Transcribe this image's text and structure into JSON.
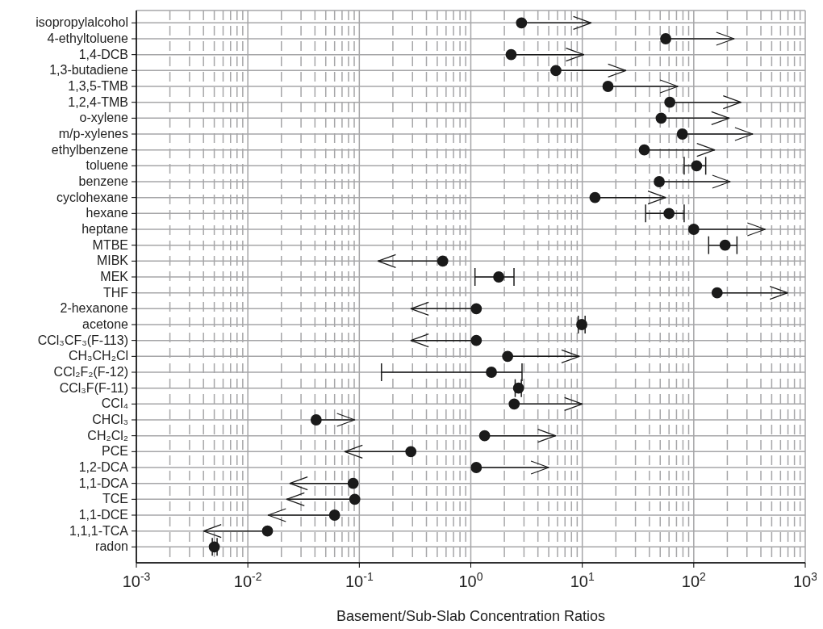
{
  "chart_data": {
    "type": "scatter",
    "orientation": "horizontal",
    "xlabel": "Basement/Sub-Slab Concentration Ratios",
    "categories": [
      "isopropylalcohol",
      "4-ethyltoluene",
      "1,4-DCB",
      "1,3-butadiene",
      "1,3,5-TMB",
      "1,2,4-TMB",
      "o-xylene",
      "m/p-xylenes",
      "ethylbenzene",
      "toluene",
      "benzene",
      "cyclohexane",
      "hexane",
      "heptane",
      "MTBE",
      "MIBK",
      "MEK",
      "THF",
      "2-hexanone",
      "acetone",
      "CCl₃CF₃(F-113)",
      "CH₃CH₂Cl",
      "CCl₂F₂(F-12)",
      "CCl₃F(F-11)",
      "CCl₄",
      "CHCl₃",
      "CH₂Cl₂",
      "PCE",
      "1,2-DCA",
      "1,1-DCA",
      "TCE",
      "1,1-DCE",
      "1,1,1-TCA",
      "radon"
    ],
    "values": [
      2.85,
      56,
      2.3,
      5.8,
      17,
      61,
      51,
      79,
      36,
      106,
      49,
      13,
      60,
      100,
      191,
      0.56,
      1.78,
      162,
      1.12,
      9.9,
      1.12,
      2.14,
      1.53,
      2.68,
      2.45,
      0.041,
      1.33,
      0.29,
      1.12,
      0.088,
      0.091,
      0.06,
      0.015,
      0.005
    ],
    "errors": [
      [
        2.85,
        12
      ],
      [
        56,
        230
      ],
      [
        2.3,
        10.3
      ],
      [
        5.8,
        24.6
      ],
      [
        17,
        72
      ],
      [
        61,
        265
      ],
      [
        51,
        208
      ],
      [
        79,
        338
      ],
      [
        36,
        154
      ],
      [
        82,
        128
      ],
      [
        49,
        212
      ],
      [
        13,
        56
      ],
      [
        37,
        82
      ],
      [
        100,
        437
      ],
      [
        136,
        244
      ],
      [
        0.147,
        0.56
      ],
      [
        1.09,
        2.44
      ],
      [
        162,
        695
      ],
      [
        0.29,
        1.12
      ],
      [
        9.2,
        10.6
      ],
      [
        0.29,
        1.12
      ],
      [
        2.14,
        9.4
      ],
      [
        0.158,
        2.88
      ],
      [
        2.5,
        2.84
      ],
      [
        2.45,
        10
      ],
      [
        0.041,
        0.091
      ],
      [
        1.33,
        5.76
      ],
      [
        0.074,
        0.29
      ],
      [
        1.12,
        5
      ],
      [
        0.0238,
        0.088
      ],
      [
        0.0223,
        0.091
      ],
      [
        0.0152,
        0.06
      ],
      [
        0.004,
        0.015
      ],
      [
        0.0048,
        0.0053
      ]
    ],
    "color": "#1a1a1a",
    "marker": "circle",
    "log": "x",
    "grid": true,
    "xlim": [
      0.001,
      1000
    ],
    "xticks": [
      {
        "value": 0.001,
        "label": "10$^{-3}$"
      },
      {
        "value": 0.01,
        "label": "10$^{-2}$"
      },
      {
        "value": 0.1,
        "label": "10$^{-1}$"
      },
      {
        "value": 1,
        "label": "10$^{0}$"
      },
      {
        "value": 10,
        "label": "10$^{1}$"
      },
      {
        "value": 100,
        "label": "10$^{2}$"
      },
      {
        "value": 1000,
        "label": "10$^{3}$"
      }
    ]
  }
}
